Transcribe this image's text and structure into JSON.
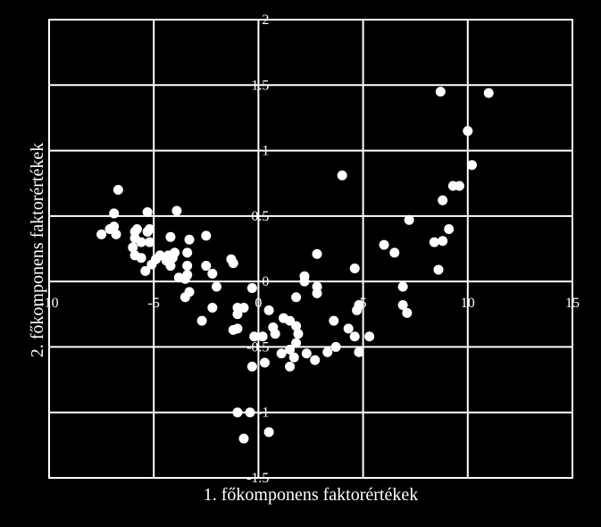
{
  "chart_data": {
    "type": "scatter",
    "title": "",
    "xlabel": "1. főkomponens faktorértékek",
    "ylabel": "2. főkomponens faktorértékek",
    "xlim": [
      -10,
      15
    ],
    "ylim": [
      -1.5,
      2
    ],
    "xticks": [
      -10,
      -5,
      0,
      5,
      10,
      15
    ],
    "yticks": [
      -1.5,
      -1,
      -0.5,
      0,
      0.5,
      1,
      1.5,
      2
    ],
    "xtick_labels": [
      "-10",
      "-5",
      "0",
      "5",
      "10",
      "15"
    ],
    "ytick_labels": [
      "-1.5",
      "-1",
      "-0.5",
      "0",
      "0.5",
      "1",
      "1.5",
      "2"
    ],
    "grid": true,
    "colors": {
      "background": "#000000",
      "points": "#ffffff",
      "grid": "#ffffff"
    },
    "series": [
      {
        "points": [
          [
            8.7,
            1.45
          ],
          [
            11.0,
            1.44
          ],
          [
            10.0,
            1.15
          ],
          [
            10.2,
            0.89
          ],
          [
            9.3,
            0.73
          ],
          [
            9.6,
            0.73
          ],
          [
            8.8,
            0.62
          ],
          [
            7.2,
            0.47
          ],
          [
            9.1,
            0.4
          ],
          [
            8.8,
            0.31
          ],
          [
            8.4,
            0.3
          ],
          [
            6.0,
            0.28
          ],
          [
            6.5,
            0.22
          ],
          [
            8.6,
            0.09
          ],
          [
            6.9,
            -0.04
          ],
          [
            6.9,
            -0.18
          ],
          [
            7.1,
            -0.24
          ],
          [
            4.6,
            0.1
          ],
          [
            4.0,
            0.81
          ],
          [
            2.8,
            0.21
          ],
          [
            4.8,
            -0.18
          ],
          [
            4.7,
            -0.22
          ],
          [
            5.3,
            -0.42
          ],
          [
            4.6,
            -0.42
          ],
          [
            4.3,
            -0.36
          ],
          [
            3.6,
            -0.3
          ],
          [
            4.8,
            -0.54
          ],
          [
            3.7,
            -0.5
          ],
          [
            3.3,
            -0.54
          ],
          [
            2.7,
            -0.6
          ],
          [
            2.3,
            -0.55
          ],
          [
            1.9,
            -0.4
          ],
          [
            1.8,
            -0.34
          ],
          [
            1.8,
            -0.47
          ],
          [
            1.5,
            -0.3
          ],
          [
            1.2,
            -0.28
          ],
          [
            1.5,
            -0.52
          ],
          [
            1.1,
            -0.55
          ],
          [
            1.7,
            -0.58
          ],
          [
            1.5,
            -0.65
          ],
          [
            2.2,
            0.04
          ],
          [
            2.2,
            0.0
          ],
          [
            2.8,
            -0.04
          ],
          [
            2.8,
            -0.09
          ],
          [
            1.8,
            -0.12
          ],
          [
            0.5,
            -0.22
          ],
          [
            0.7,
            -0.35
          ],
          [
            0.8,
            -0.4
          ],
          [
            0.2,
            -0.42
          ],
          [
            -0.2,
            -0.42
          ],
          [
            -1.0,
            -0.2
          ],
          [
            -1.0,
            -0.25
          ],
          [
            -0.7,
            -0.2
          ],
          [
            -0.3,
            -0.05
          ],
          [
            -1.0,
            -0.36
          ],
          [
            -1.2,
            -0.37
          ],
          [
            -0.3,
            -0.65
          ],
          [
            0.3,
            -0.62
          ],
          [
            -1.0,
            -1.0
          ],
          [
            -0.4,
            -1.0
          ],
          [
            -0.7,
            -1.2
          ],
          [
            0.5,
            -1.15
          ],
          [
            -1.3,
            0.17
          ],
          [
            -1.2,
            0.14
          ],
          [
            -2.5,
            0.35
          ],
          [
            -2.5,
            0.12
          ],
          [
            -2.2,
            0.06
          ],
          [
            -2.0,
            -0.04
          ],
          [
            -2.2,
            -0.2
          ],
          [
            -2.7,
            -0.3
          ],
          [
            -3.3,
            -0.08
          ],
          [
            -3.5,
            -0.12
          ],
          [
            -3.5,
            0.02
          ],
          [
            -3.4,
            0.05
          ],
          [
            -3.8,
            0.03
          ],
          [
            -3.4,
            0.22
          ],
          [
            -3.4,
            0.12
          ],
          [
            -3.3,
            0.32
          ],
          [
            -3.9,
            0.54
          ],
          [
            -4.2,
            0.34
          ],
          [
            -4.0,
            0.22
          ],
          [
            -4.3,
            0.2
          ],
          [
            -4.1,
            0.18
          ],
          [
            -4.2,
            0.12
          ],
          [
            -4.4,
            0.16
          ],
          [
            -4.7,
            0.2
          ],
          [
            -4.9,
            0.17
          ],
          [
            -5.1,
            0.13
          ],
          [
            -5.2,
            0.3
          ],
          [
            -5.2,
            0.4
          ],
          [
            -5.3,
            0.38
          ],
          [
            -5.3,
            0.53
          ],
          [
            -5.4,
            0.08
          ],
          [
            -5.6,
            0.18
          ],
          [
            -5.6,
            0.3
          ],
          [
            -5.8,
            0.4
          ],
          [
            -5.9,
            0.38
          ],
          [
            -5.9,
            0.33
          ],
          [
            -6.0,
            0.26
          ],
          [
            -5.9,
            0.2
          ],
          [
            -6.7,
            0.7
          ],
          [
            -6.9,
            0.52
          ],
          [
            -6.9,
            0.42
          ],
          [
            -6.8,
            0.36
          ],
          [
            -7.1,
            0.4
          ],
          [
            -7.5,
            0.36
          ]
        ]
      }
    ]
  }
}
